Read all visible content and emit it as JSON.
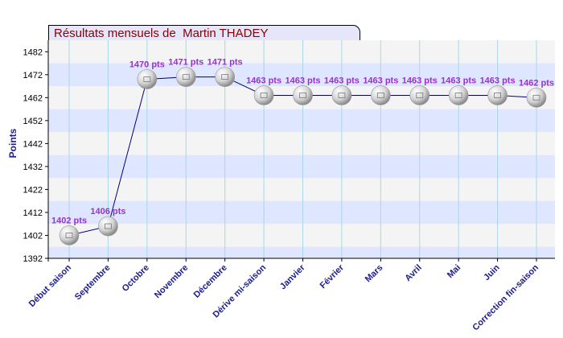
{
  "chart_data": {
    "type": "line",
    "title": "Résultats mensuels de  Martin THADEY",
    "xlabel": "",
    "ylabel": "Points",
    "ylim": [
      1392,
      1487
    ],
    "yticks": [
      1392,
      1402,
      1412,
      1422,
      1432,
      1442,
      1452,
      1462,
      1472,
      1482
    ],
    "categories": [
      "Début saison",
      "Septembre",
      "Octobre",
      "Novembre",
      "Décembre",
      "Dérive mi-saison",
      "Janvier",
      "Février",
      "Mars",
      "Avril",
      "Mai",
      "Juin",
      "Correction fin-saison"
    ],
    "values": [
      1402,
      1406,
      1470,
      1471,
      1471,
      1463,
      1463,
      1463,
      1463,
      1463,
      1463,
      1463,
      1462
    ],
    "labels": [
      "1402 pts",
      "1406 pts",
      "1470 pts",
      "1471 pts",
      "1471 pts",
      "1463 pts",
      "1463 pts",
      "1463 pts",
      "1463 pts",
      "1463 pts",
      "1463 pts",
      "1463 pts",
      "1462 pts"
    ],
    "grid": true,
    "colors": {
      "line": "#000080",
      "label": "#9932cc",
      "axis_text": "#1c1c8c",
      "band": "#dfe6ff",
      "band_alt": "#f4f4f4",
      "title": "#8b0000"
    }
  }
}
